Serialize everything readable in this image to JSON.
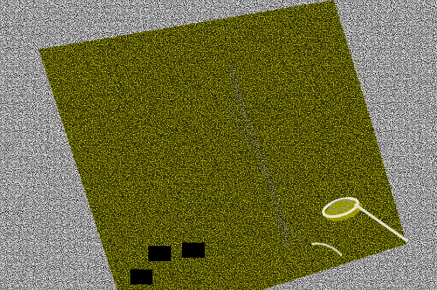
{
  "scene": {
    "kind": "photo",
    "subject": "yellow-sheet-with-paperclip",
    "colors": {
      "background": "#000000",
      "sheet": "#ffff00",
      "speckle_dark": "#000000",
      "speckle_light": "#ffffff",
      "clip": "#dcdcc8",
      "clip_shadow": "#b8b000",
      "redaction": "#000000"
    },
    "redaction_count": 3
  }
}
